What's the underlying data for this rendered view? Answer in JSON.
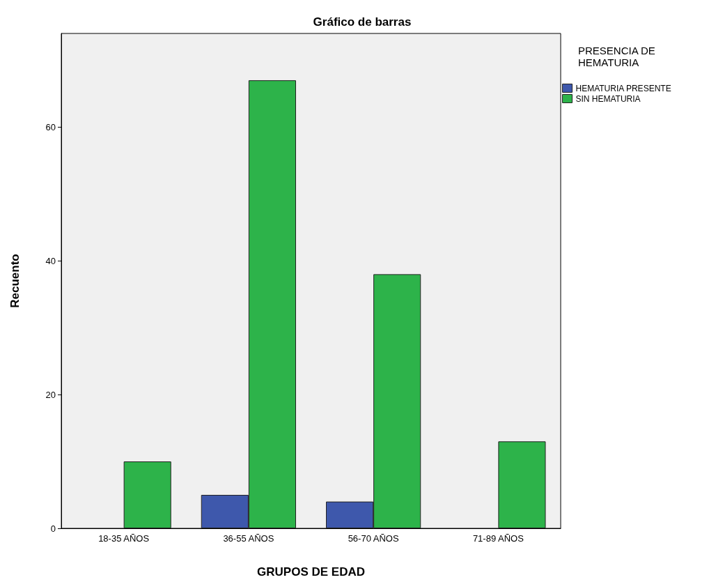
{
  "chart_data": {
    "type": "bar",
    "title": "Gráfico de barras",
    "xlabel": "GRUPOS DE EDAD",
    "ylabel": "Recuento",
    "legend_title": "PRESENCIA DE\nHEMATURIA",
    "categories": [
      "18-35 AÑOS",
      "36-55 AÑOS",
      "56-70 AÑOS",
      "71-89 AÑOS"
    ],
    "series": [
      {
        "name": "HEMATURIA PRESENTE",
        "color": "#3e58ac",
        "values": [
          0,
          5,
          4,
          0
        ]
      },
      {
        "name": "SIN HEMATURIA",
        "color": "#2db34a",
        "values": [
          10,
          67,
          38,
          13
        ]
      }
    ],
    "ylim": [
      0,
      74
    ],
    "yticks": [
      0,
      20,
      40,
      60
    ],
    "grid": false,
    "legend": "top right"
  }
}
